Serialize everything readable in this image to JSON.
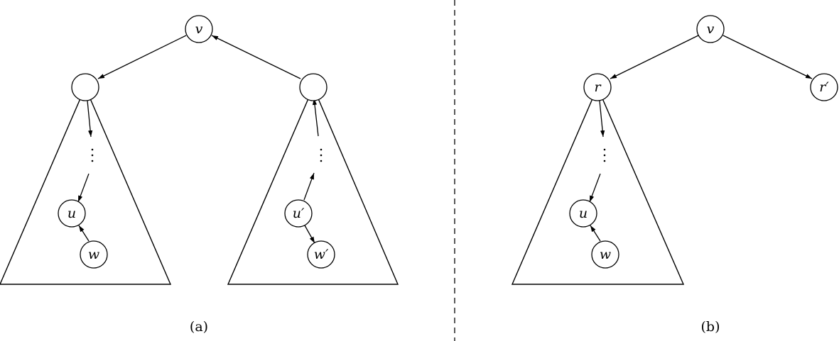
{
  "panel_a": {
    "caption": "(a)",
    "nodes": {
      "root": "v",
      "left_child": "",
      "right_child": "",
      "left_u": "u",
      "left_w": "w",
      "right_u": "u′",
      "right_w": "w′"
    }
  },
  "panel_b": {
    "caption": "(b)",
    "nodes": {
      "root": "v",
      "left_child": "r",
      "right_child": "r′",
      "left_u": "u",
      "left_w": "w"
    }
  }
}
